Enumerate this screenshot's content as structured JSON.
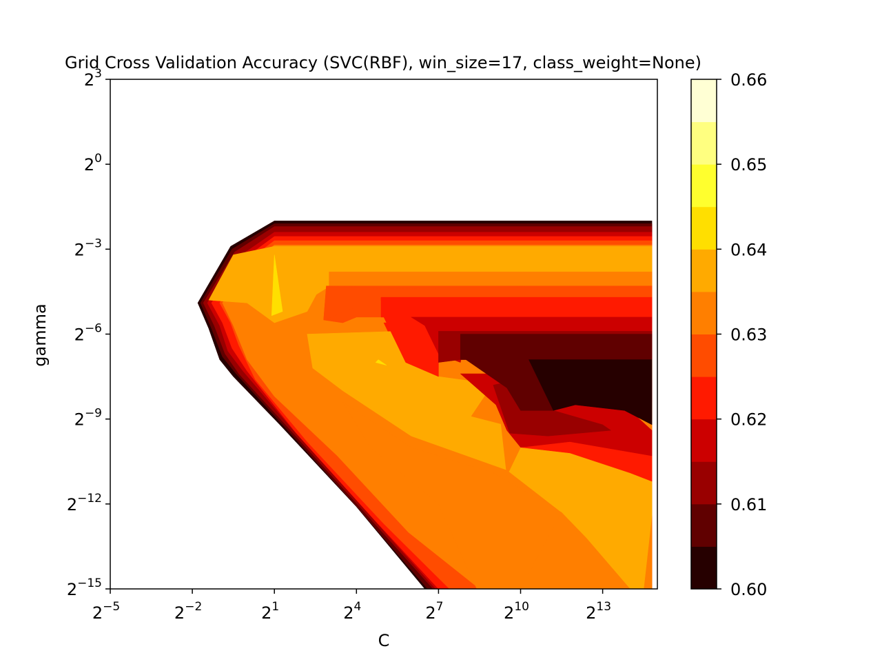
{
  "chart_data": {
    "type": "heatmap",
    "subtype": "filled-contour",
    "title": "Grid Cross Validation Accuracy (SVC(RBF), win_size=17, class_weight=None)",
    "xlabel": "C",
    "ylabel": "gamma",
    "x_scale": "log2",
    "y_scale": "log2",
    "xlim_log2": [
      -5,
      15
    ],
    "ylim_log2": [
      -15,
      3
    ],
    "xticks": [
      {
        "base": "2",
        "exp": "−5"
      },
      {
        "base": "2",
        "exp": "−2"
      },
      {
        "base": "2",
        "exp": "1"
      },
      {
        "base": "2",
        "exp": "4"
      },
      {
        "base": "2",
        "exp": "7"
      },
      {
        "base": "2",
        "exp": "10"
      },
      {
        "base": "2",
        "exp": "13"
      }
    ],
    "yticks": [
      {
        "base": "2",
        "exp": "3"
      },
      {
        "base": "2",
        "exp": "0"
      },
      {
        "base": "2",
        "exp": "−3"
      },
      {
        "base": "2",
        "exp": "−6"
      },
      {
        "base": "2",
        "exp": "−9"
      },
      {
        "base": "2",
        "exp": "−12"
      },
      {
        "base": "2",
        "exp": "−15"
      }
    ],
    "colormap": "hot",
    "levels": [
      0.6,
      0.605,
      0.61,
      0.615,
      0.62,
      0.625,
      0.63,
      0.635,
      0.64,
      0.645,
      0.65,
      0.655,
      0.66
    ],
    "level_colors": [
      "#260000",
      "#600000",
      "#990000",
      "#cc0000",
      "#ff1a00",
      "#ff4c00",
      "#ff7f00",
      "#ffaa00",
      "#ffdf00",
      "#ffff2e",
      "#ffff80",
      "#ffffd4"
    ],
    "colorbar_ticks": [
      "0.60",
      "0.61",
      "0.62",
      "0.63",
      "0.64",
      "0.65",
      "0.66"
    ],
    "regions": [
      {
        "level": 0,
        "points": [
          [
            -0.6,
            -4.5
          ],
          [
            0.9,
            -2.3
          ],
          [
            2.2,
            -2.3
          ],
          [
            14.8,
            -2.3
          ],
          [
            14.8,
            -7.6
          ],
          [
            13.3,
            -7.6
          ],
          [
            11.8,
            -7.6
          ],
          [
            10.2,
            -7.4
          ],
          [
            7.8,
            -7.4
          ],
          [
            6.0,
            -7.3
          ],
          [
            6.0,
            -7.8
          ],
          [
            6.0,
            -8.0
          ],
          [
            5.8,
            -8.3
          ],
          [
            5.0,
            -8.4
          ],
          [
            3.5,
            -8.5
          ],
          [
            2.2,
            -8.0
          ],
          [
            0.9,
            -6.9
          ],
          [
            -0.6,
            -5.9
          ],
          [
            -1.6,
            -5.9
          ],
          [
            -2.4,
            -6.5
          ],
          [
            -2.0,
            -7.0
          ],
          [
            -1.0,
            -8.0
          ],
          [
            1.0,
            -11.2
          ],
          [
            4.0,
            -14.0
          ],
          [
            4.4,
            -15.0
          ],
          [
            9.3,
            -15.0
          ],
          [
            14.5,
            -15.0
          ],
          [
            14.8,
            -15.0
          ],
          [
            14.8,
            -12.8
          ],
          [
            14.8,
            -9.4
          ],
          [
            14.8,
            -8.4
          ],
          [
            14.8,
            -7.6
          ],
          [
            14.8,
            -2.3
          ],
          [
            14.8,
            -2.3
          ],
          [
            14.8,
            -2.0
          ],
          [
            1.0,
            -2.0
          ],
          [
            -0.6,
            -2.9
          ],
          [
            -1.8,
            -4.9
          ],
          [
            -1.4,
            -5.8
          ],
          [
            -1.0,
            -6.9
          ],
          [
            -0.5,
            -7.5
          ],
          [
            1.2,
            -9.2
          ],
          [
            4.0,
            -12.1
          ],
          [
            6.5,
            -15.0
          ],
          [
            14.8,
            -15.0
          ],
          [
            14.8,
            -2.0
          ],
          [
            1.0,
            -2.0
          ],
          [
            -0.6,
            -2.9
          ],
          [
            -1.8,
            -4.9
          ],
          [
            -1.4,
            -5.8
          ],
          [
            -1.0,
            -6.9
          ]
        ],
        "skip": true
      },
      {
        "level": 0,
        "points": [
          [
            1.0,
            -2.0
          ],
          [
            14.8,
            -2.0
          ],
          [
            14.8,
            -15.0
          ],
          [
            6.5,
            -15.0
          ],
          [
            4.0,
            -12.1
          ],
          [
            1.2,
            -9.2
          ],
          [
            -0.5,
            -7.5
          ],
          [
            -1.0,
            -6.9
          ],
          [
            -1.4,
            -5.8
          ],
          [
            -1.8,
            -4.9
          ],
          [
            -0.6,
            -2.9
          ]
        ]
      },
      {
        "level": 1,
        "points": [
          [
            1.0,
            -2.1
          ],
          [
            14.8,
            -2.1
          ],
          [
            14.8,
            -15.0
          ],
          [
            6.6,
            -15.0
          ],
          [
            4.1,
            -12.2
          ],
          [
            1.3,
            -9.2
          ],
          [
            -0.4,
            -7.4
          ],
          [
            -0.9,
            -6.8
          ],
          [
            -1.3,
            -5.8
          ],
          [
            -1.7,
            -4.9
          ],
          [
            -0.55,
            -3.0
          ]
        ]
      },
      {
        "level": 2,
        "points": [
          [
            1.0,
            -2.2
          ],
          [
            14.8,
            -2.2
          ],
          [
            14.8,
            -15.0
          ],
          [
            6.8,
            -15.0
          ],
          [
            4.3,
            -12.3
          ],
          [
            1.5,
            -9.3
          ],
          [
            -0.3,
            -7.4
          ],
          [
            -0.8,
            -6.7
          ],
          [
            -1.2,
            -5.7
          ],
          [
            -1.6,
            -4.9
          ],
          [
            -0.45,
            -3.1
          ]
        ]
      },
      {
        "level": 3,
        "points": [
          [
            1.0,
            -2.4
          ],
          [
            14.8,
            -2.4
          ],
          [
            14.8,
            -15.0
          ],
          [
            6.9,
            -15.0
          ],
          [
            4.5,
            -12.4
          ],
          [
            1.7,
            -9.4
          ],
          [
            -0.15,
            -7.3
          ],
          [
            -0.7,
            -6.6
          ],
          [
            -1.0,
            -5.7
          ],
          [
            -1.45,
            -4.9
          ],
          [
            -0.35,
            -3.3
          ]
        ]
      },
      {
        "level": 4,
        "points": [
          [
            1.0,
            -2.55
          ],
          [
            14.8,
            -2.55
          ],
          [
            14.8,
            -15.0
          ],
          [
            7.0,
            -15.0
          ],
          [
            4.6,
            -12.5
          ],
          [
            1.8,
            -9.5
          ],
          [
            0.0,
            -7.3
          ],
          [
            -0.55,
            -6.5
          ],
          [
            -0.9,
            -5.6
          ],
          [
            -1.3,
            -4.9
          ],
          [
            -0.2,
            -3.4
          ]
        ]
      },
      {
        "level": 5,
        "points": [
          [
            1.0,
            -2.7
          ],
          [
            14.8,
            -2.7
          ],
          [
            14.8,
            -15.0
          ],
          [
            7.4,
            -15.0
          ],
          [
            5.0,
            -12.7
          ],
          [
            2.2,
            -9.8
          ],
          [
            0.3,
            -7.6
          ],
          [
            -0.3,
            -6.4
          ],
          [
            -0.6,
            -5.6
          ],
          [
            -1.0,
            -4.9
          ],
          [
            -0.1,
            -3.5
          ]
        ]
      },
      {
        "level": 6,
        "points": [
          [
            1.0,
            -2.85
          ],
          [
            14.8,
            -2.85
          ],
          [
            14.8,
            -15.0
          ],
          [
            8.5,
            -15.0
          ],
          [
            5.9,
            -13.0
          ],
          [
            3.3,
            -10.3
          ],
          [
            1.0,
            -8.2
          ],
          [
            0.0,
            -6.9
          ],
          [
            -0.5,
            -5.7
          ],
          [
            -0.9,
            -4.9
          ],
          [
            0.0,
            -3.6
          ]
        ]
      }
    ],
    "overlays": [
      {
        "level": 7,
        "points": [
          [
            2.0,
            -3.4
          ],
          [
            14.8,
            -3.4
          ],
          [
            14.8,
            -3.8
          ],
          [
            2.0,
            -3.8
          ]
        ]
      },
      {
        "level": 7,
        "points": [
          [
            1.2,
            -3.5
          ],
          [
            2.2,
            -3.5
          ],
          [
            3.2,
            -3.5
          ],
          [
            3.2,
            -4.2
          ],
          [
            2.2,
            -4.8
          ],
          [
            1.4,
            -4.2
          ],
          [
            1.0,
            -5.5
          ]
        ]
      },
      {
        "level": 6,
        "points": [
          [
            3.0,
            -3.8
          ],
          [
            14.8,
            -3.8
          ],
          [
            14.8,
            -4.3
          ],
          [
            3.0,
            -4.3
          ]
        ]
      },
      {
        "level": 5,
        "points": [
          [
            2.9,
            -4.3
          ],
          [
            14.8,
            -4.3
          ],
          [
            14.8,
            -5.4
          ],
          [
            12.0,
            -5.4
          ],
          [
            4.0,
            -5.4
          ],
          [
            3.5,
            -5.6
          ],
          [
            2.8,
            -5.5
          ]
        ]
      },
      {
        "level": 4,
        "points": [
          [
            4.9,
            -4.7
          ],
          [
            14.8,
            -4.7
          ],
          [
            14.8,
            -5.6
          ],
          [
            6.0,
            -5.7
          ],
          [
            5.5,
            -5.4
          ],
          [
            5.0,
            -5.4
          ],
          [
            4.9,
            -4.8
          ]
        ]
      },
      {
        "level": 4,
        "points": [
          [
            5.0,
            -5.6
          ],
          [
            6.5,
            -5.6
          ],
          [
            7.0,
            -6.0
          ],
          [
            7.0,
            -6.7
          ],
          [
            6.3,
            -6.2
          ],
          [
            5.2,
            -6.0
          ]
        ]
      }
    ],
    "polys": [
      {
        "level": 5,
        "points": [
          [
            -1.8,
            -4.9
          ],
          [
            -0.6,
            -2.9
          ],
          [
            1.0,
            -2.0
          ],
          [
            14.8,
            -2.0
          ],
          [
            14.8,
            -15.0
          ],
          [
            6.5,
            -15.0
          ]
        ]
      }
    ]
  }
}
